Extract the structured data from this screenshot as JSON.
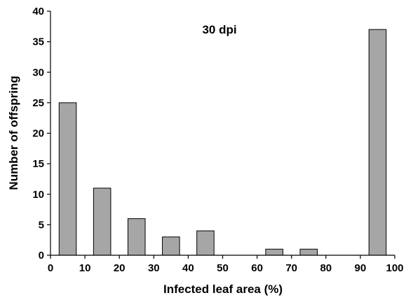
{
  "chart_data": {
    "type": "bar",
    "annotation": "30 dpi",
    "xlabel": "Infected leaf area (%)",
    "ylabel": "Number of offspring",
    "xlim": [
      0,
      100
    ],
    "ylim": [
      0,
      40
    ],
    "x_ticks": [
      0,
      10,
      20,
      30,
      40,
      50,
      60,
      70,
      80,
      90,
      100
    ],
    "y_ticks": [
      0,
      5,
      10,
      15,
      20,
      25,
      30,
      35,
      40
    ],
    "bin_width": 5,
    "bars": [
      {
        "x": 5,
        "value": 25
      },
      {
        "x": 15,
        "value": 11
      },
      {
        "x": 25,
        "value": 6
      },
      {
        "x": 35,
        "value": 3
      },
      {
        "x": 45,
        "value": 4
      },
      {
        "x": 55,
        "value": 0
      },
      {
        "x": 65,
        "value": 1
      },
      {
        "x": 75,
        "value": 1
      },
      {
        "x": 85,
        "value": 0
      },
      {
        "x": 95,
        "value": 37
      }
    ],
    "bar_color": "#a6a6a6",
    "bar_edge_color": "#000000",
    "grid": false,
    "legend": "none"
  }
}
